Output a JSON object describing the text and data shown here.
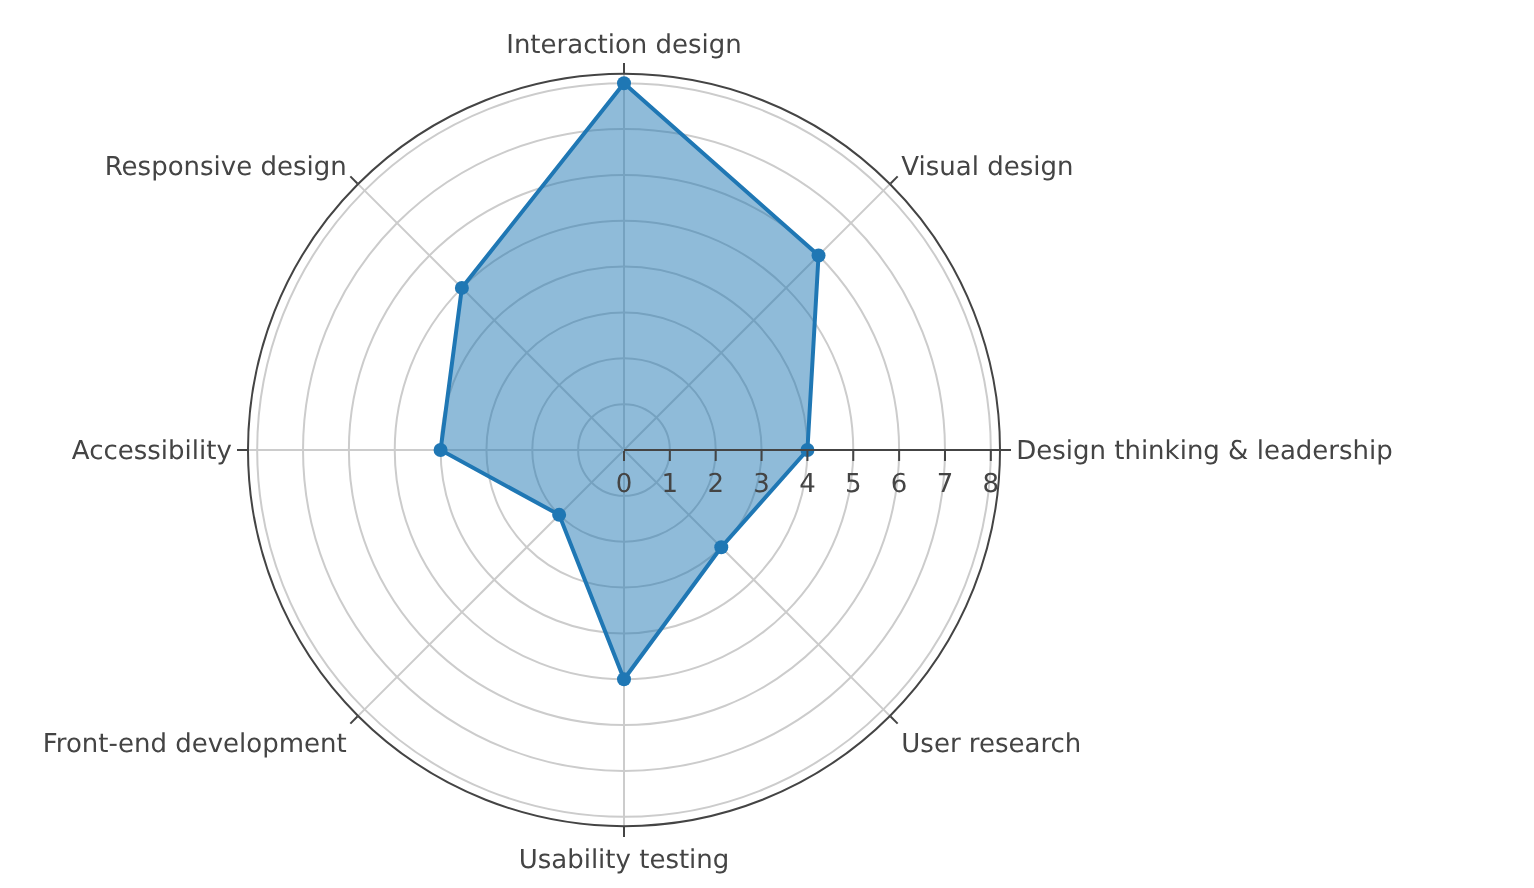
{
  "chart_data": {
    "type": "radar",
    "categories": [
      "Interaction design",
      "Visual design",
      "Design thinking & leadership",
      "User research",
      "Usability testing",
      "Front-end development",
      "Accessibility",
      "Responsive design"
    ],
    "series": [
      {
        "color": "#1f77b4",
        "values": [
          8,
          6,
          4,
          3,
          5,
          2,
          4,
          5
        ]
      }
    ],
    "ylim": [
      0,
      8.2
    ],
    "yticks": [
      0,
      1,
      2,
      3,
      4,
      5,
      6,
      7,
      8
    ],
    "grid": true,
    "marker": "circle",
    "line_style": "solid"
  }
}
